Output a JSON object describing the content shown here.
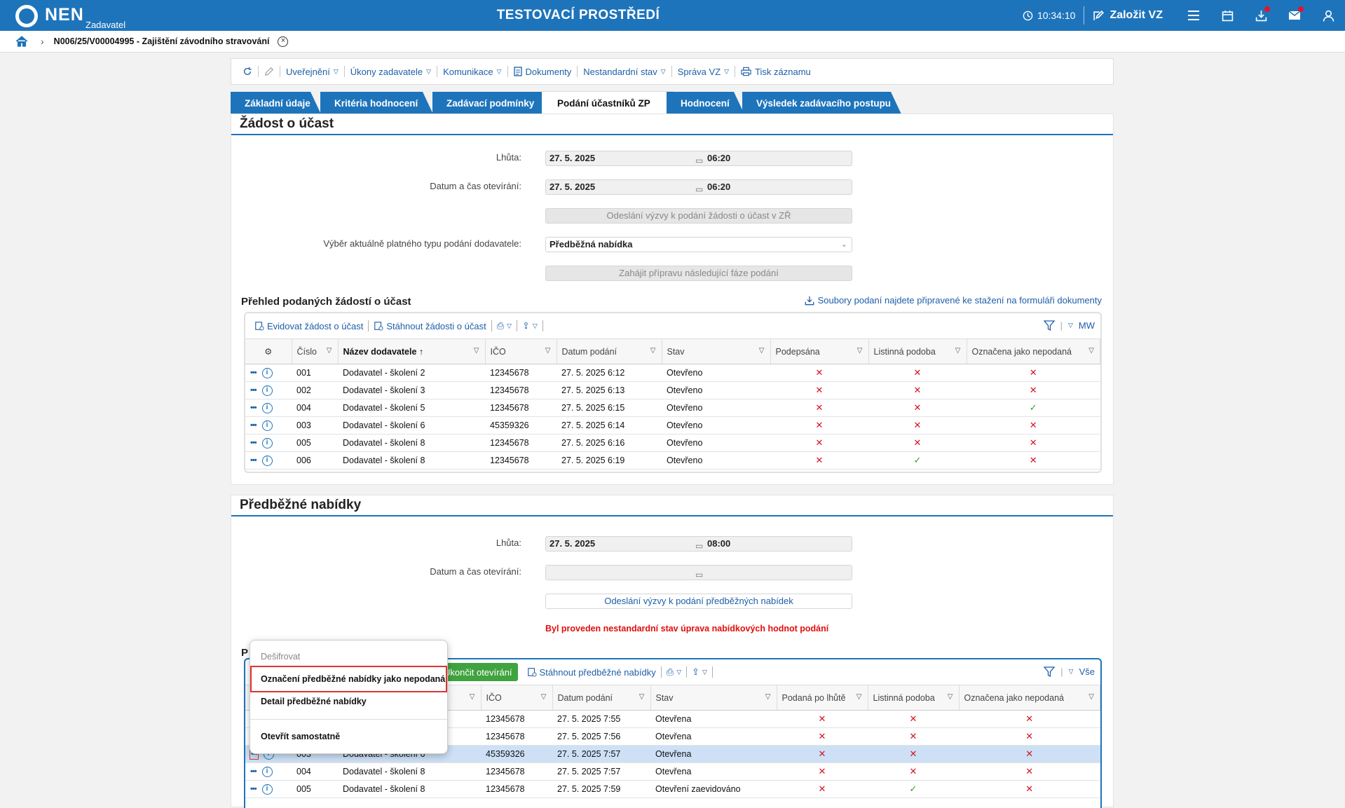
{
  "header": {
    "logo": "NEN",
    "logo_sub": "Zadavatel",
    "env_title": "TESTOVACÍ PROSTŘEDÍ",
    "clock": "10:34:10",
    "create_label": "Založit VZ"
  },
  "breadcrumb": {
    "title": "N006/25/V00004995 - Zajištění závodního stravování"
  },
  "toolbar": {
    "items": [
      "Uveřejnění",
      "Úkony zadavatele",
      "Komunikace",
      "Dokumenty",
      "Nestandardní stav",
      "Správa VZ",
      "Tisk záznamu"
    ]
  },
  "tabs": [
    "Základní údaje",
    "Kritéria hodnocení",
    "Zadávací podmínky",
    "Podání účastníků ZP",
    "Hodnocení",
    "Výsledek zadávacího postupu"
  ],
  "zadost": {
    "title": "Žádost o účast",
    "lhuta_label": "Lhůta:",
    "lhuta_date": "27. 5. 2025",
    "lhuta_time": "06:20",
    "otevreni_label": "Datum a čas otevírání:",
    "otevreni_date": "27. 5. 2025",
    "otevreni_time": "06:20",
    "btn_vyzva": "Odeslání výzvy k podání žádosti o účast v ZŘ",
    "typ_label": "Výběr aktuálně platného typu podání dodavatele:",
    "typ_value": "Předběžná nabídka",
    "btn_faze": "Zahájit přípravu následující fáze podání",
    "prehled_title": "Přehled podaných žádostí o účast",
    "dl_link": "Soubory podaní najdete připravené ke stažení na formuláři dokumenty",
    "tools": {
      "evidovat": "Evidovat žádost o účast",
      "stahnout": "Stáhnout žádosti o účast",
      "mw": "MW"
    },
    "columns": [
      "Číslo",
      "Název dodavatele",
      "IČO",
      "Datum podání",
      "Stav",
      "Podepsána",
      "Listinná podoba",
      "Označena jako nepodaná"
    ],
    "rows": [
      {
        "cislo": "001",
        "nazev": "Dodavatel - školení 2",
        "ico": "12345678",
        "datum": "27. 5. 2025 6:12",
        "stav": "Otevřeno",
        "a": "✕",
        "b": "✕",
        "c": "✕"
      },
      {
        "cislo": "002",
        "nazev": "Dodavatel - školení 3",
        "ico": "12345678",
        "datum": "27. 5. 2025 6:13",
        "stav": "Otevřeno",
        "a": "✕",
        "b": "✕",
        "c": "✕"
      },
      {
        "cislo": "004",
        "nazev": "Dodavatel - školení 5",
        "ico": "12345678",
        "datum": "27. 5. 2025 6:15",
        "stav": "Otevřeno",
        "a": "✕",
        "b": "✕",
        "c": "✓"
      },
      {
        "cislo": "003",
        "nazev": "Dodavatel - školení 6",
        "ico": "45359326",
        "datum": "27. 5. 2025 6:14",
        "stav": "Otevřeno",
        "a": "✕",
        "b": "✕",
        "c": "✕"
      },
      {
        "cislo": "005",
        "nazev": "Dodavatel - školení 8",
        "ico": "12345678",
        "datum": "27. 5. 2025 6:16",
        "stav": "Otevřeno",
        "a": "✕",
        "b": "✕",
        "c": "✕"
      },
      {
        "cislo": "006",
        "nazev": "Dodavatel - školení 8",
        "ico": "12345678",
        "datum": "27. 5. 2025 6:19",
        "stav": "Otevřeno",
        "a": "✕",
        "b": "✓",
        "c": "✕"
      }
    ]
  },
  "predbezne": {
    "title": "Předběžné nabídky",
    "lhuta_label": "Lhůta:",
    "lhuta_date": "27. 5. 2025",
    "lhuta_time": "08:00",
    "otevreni_label": "Datum a čas otevírání:",
    "btn_vyzva": "Odeslání výzvy k podání předběžných nabídek",
    "warning": "Byl proveden nestandardní stav úprava nabídkových hodnot podání",
    "section_letter": "P",
    "tools": {
      "ukoncit": "Ukončit otevírání",
      "stahnout": "Stáhnout předběžné nabídky",
      "vse": "Vše"
    },
    "columns": [
      "IČO",
      "Datum podání",
      "Stav",
      "Podaná po lhůtě",
      "Listinná podoba",
      "Označena jako nepodaná"
    ],
    "rows": [
      {
        "cislo": "",
        "nazev": "",
        "ico": "12345678",
        "datum": "27. 5. 2025 7:55",
        "stav": "Otevřena",
        "a": "✕",
        "b": "✕",
        "c": "✕"
      },
      {
        "cislo": "",
        "nazev": "",
        "ico": "12345678",
        "datum": "27. 5. 2025 7:56",
        "stav": "Otevřena",
        "a": "✕",
        "b": "✕",
        "c": "✕"
      },
      {
        "cislo": "003",
        "nazev": "Dodavatel - školení 6",
        "ico": "45359326",
        "datum": "27. 5. 2025 7:57",
        "stav": "Otevřena",
        "a": "✕",
        "b": "✕",
        "c": "✕"
      },
      {
        "cislo": "004",
        "nazev": "Dodavatel - školení 8",
        "ico": "12345678",
        "datum": "27. 5. 2025 7:57",
        "stav": "Otevřena",
        "a": "✕",
        "b": "✕",
        "c": "✕"
      },
      {
        "cislo": "005",
        "nazev": "Dodavatel - školení 8",
        "ico": "12345678",
        "datum": "27. 5. 2025 7:59",
        "stav": "Otevření zaevidováno",
        "a": "✕",
        "b": "✓",
        "c": "✕"
      }
    ]
  },
  "context_menu": {
    "items": [
      "Dešifrovat",
      "Označení předběžné nabídky jako nepodaná",
      "Detail předběžné nabídky",
      "Otevřít samostatně"
    ]
  }
}
